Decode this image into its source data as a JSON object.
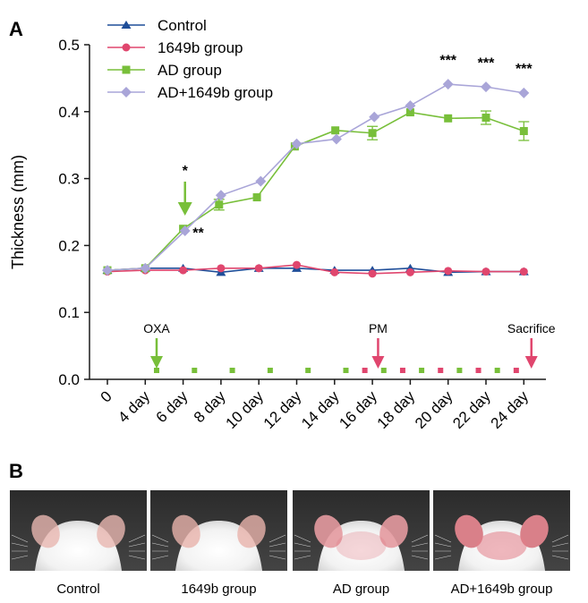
{
  "panels": {
    "a_letter": "A",
    "b_letter": "B"
  },
  "chart_data": {
    "type": "line",
    "title": "",
    "xlabel": "",
    "ylabel": "Thickness (mm)",
    "ylim": [
      0,
      0.5
    ],
    "yticks": [
      "0.0",
      "0.1",
      "0.2",
      "0.3",
      "0.4",
      "0.5"
    ],
    "categories": [
      "0",
      "4 day",
      "6 day",
      "8 day",
      "10 day",
      "12 day",
      "14 day",
      "16 day",
      "18 day",
      "20 day",
      "22 day",
      "24 day"
    ],
    "grid": false,
    "legend_position": "top-left",
    "series": [
      {
        "name": "Control",
        "color": "#1f4e99",
        "marker": "triangle",
        "points": [
          [
            0,
            0.163
          ],
          [
            1,
            0.166
          ],
          [
            2,
            0.166
          ],
          [
            3,
            0.16
          ],
          [
            4,
            0.166
          ],
          [
            5,
            0.166
          ],
          [
            6,
            0.163
          ],
          [
            7,
            0.163
          ],
          [
            8,
            0.166
          ],
          [
            9,
            0.16
          ],
          [
            10,
            0.161
          ],
          [
            11,
            0.161
          ]
        ]
      },
      {
        "name": "1649b group",
        "color": "#e0466e",
        "marker": "circle",
        "points": [
          [
            0,
            0.161
          ],
          [
            1,
            0.163
          ],
          [
            2,
            0.163
          ],
          [
            3,
            0.166
          ],
          [
            4,
            0.166
          ],
          [
            5,
            0.171
          ],
          [
            6,
            0.16
          ],
          [
            7,
            0.158
          ],
          [
            8,
            0.16
          ],
          [
            9,
            0.162
          ],
          [
            10,
            0.161
          ],
          [
            11,
            0.161
          ]
        ]
      },
      {
        "name": "AD group",
        "color": "#78bf3a",
        "marker": "square",
        "points": [
          [
            0,
            0.163
          ],
          [
            1,
            0.166
          ],
          [
            2,
            0.225
          ],
          [
            2.95,
            0.261
          ],
          [
            3.95,
            0.272
          ],
          [
            4.95,
            0.348
          ],
          [
            6.02,
            0.372
          ],
          [
            7,
            0.368
          ],
          [
            8,
            0.399
          ],
          [
            9,
            0.39
          ],
          [
            10,
            0.391
          ],
          [
            11,
            0.371
          ]
        ],
        "error": [
          0,
          0,
          0,
          0.008,
          0,
          0,
          0,
          0.01,
          0,
          0,
          0.01,
          0.014
        ]
      },
      {
        "name": "AD+1649b group",
        "color": "#a9a5d8",
        "marker": "diamond",
        "points": [
          [
            0,
            0.163
          ],
          [
            1,
            0.166
          ],
          [
            2.05,
            0.222
          ],
          [
            3,
            0.275
          ],
          [
            4.05,
            0.296
          ],
          [
            5,
            0.352
          ],
          [
            6.05,
            0.359
          ],
          [
            7.05,
            0.392
          ],
          [
            8,
            0.409
          ],
          [
            9,
            0.441
          ],
          [
            10,
            0.437
          ],
          [
            11,
            0.428
          ]
        ]
      }
    ],
    "significance": [
      {
        "label": "*",
        "x": 2.05,
        "y": 0.305
      },
      {
        "label": "**",
        "x": 2.4,
        "y": 0.212
      },
      {
        "label": "***",
        "x": 9,
        "y": 0.47
      },
      {
        "label": "***",
        "x": 10,
        "y": 0.466
      },
      {
        "label": "***",
        "x": 11,
        "y": 0.457
      }
    ],
    "treatment_arrows": [
      {
        "label": "OXA",
        "x": 1.3,
        "color": "#78bf3a"
      },
      {
        "label": "PM",
        "x": 7.15,
        "color": "#e0466e"
      },
      {
        "label": "Sacrifice",
        "x": 11.2,
        "color": "#e0466e"
      }
    ],
    "dose_marks": {
      "oxa": {
        "color": "#78bf3a",
        "x": [
          1.3,
          2.3,
          3.3,
          4.3,
          5.3,
          6.3,
          7.3,
          8.3,
          9.3,
          10.3
        ]
      },
      "pm": {
        "color": "#e0466e",
        "x": [
          6.8,
          7.8,
          8.8,
          9.8,
          10.8
        ]
      }
    }
  },
  "photos": [
    {
      "label": "Control",
      "ear_color": "#e9b7b0",
      "mark": "light"
    },
    {
      "label": "1649b group",
      "ear_color": "#e8b3ab",
      "mark": "light"
    },
    {
      "label": "AD group",
      "ear_color": "#e49aa0",
      "mark": "medium"
    },
    {
      "label": "AD+1649b group",
      "ear_color": "#d98089",
      "mark": "strong"
    }
  ]
}
